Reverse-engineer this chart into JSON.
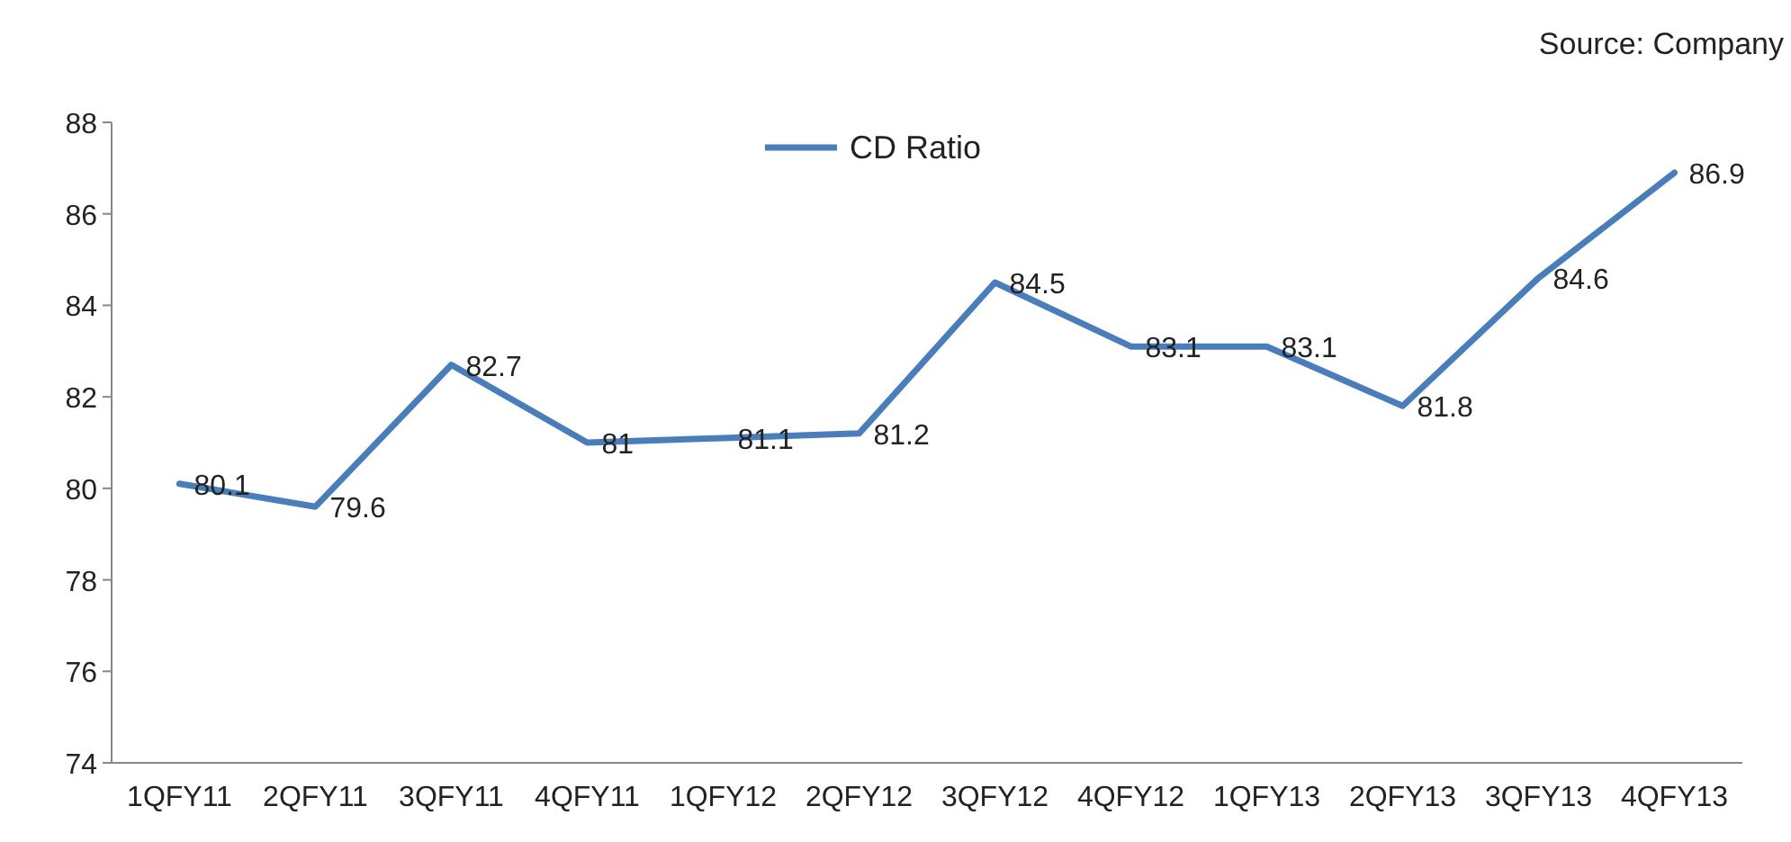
{
  "chart_data": {
    "type": "line",
    "categories": [
      "1QFY11",
      "2QFY11",
      "3QFY11",
      "4QFY11",
      "1QFY12",
      "2QFY12",
      "3QFY12",
      "4QFY12",
      "1QFY13",
      "2QFY13",
      "3QFY13",
      "4QFY13"
    ],
    "series": [
      {
        "name": "CD Ratio",
        "color": "#4a7ebb",
        "values": [
          80.1,
          79.6,
          82.7,
          81,
          81.1,
          81.2,
          84.5,
          83.1,
          83.1,
          81.8,
          84.6,
          86.9
        ]
      }
    ],
    "ylim": [
      74,
      88
    ],
    "yticks": [
      74,
      76,
      78,
      80,
      82,
      84,
      86,
      88
    ],
    "grid": false,
    "legend": "top",
    "marker": "none",
    "line_style": "solid",
    "data_labels": true,
    "annotations": [
      "Source: Company"
    ]
  }
}
